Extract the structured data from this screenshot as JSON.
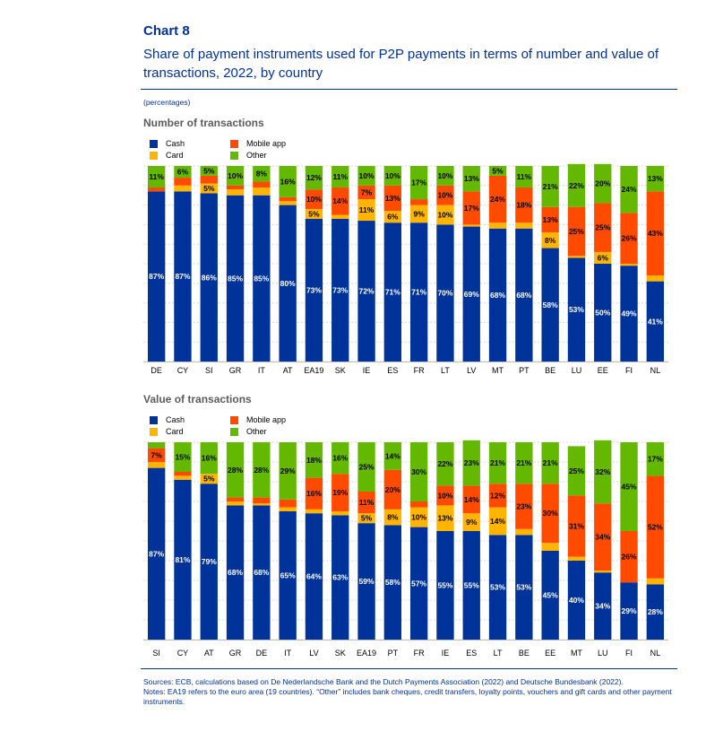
{
  "header": {
    "chart_label": "Chart 8",
    "title": "Share of payment instruments used for P2P payments in terms of number and value of transactions, 2022, by country",
    "unit": "(percentages)"
  },
  "legend": {
    "items": [
      {
        "label": "Cash",
        "color": "#003399"
      },
      {
        "label": "Card",
        "color": "#FFB400"
      },
      {
        "label": "Mobile app",
        "color": "#FF4B00"
      },
      {
        "label": "Other",
        "color": "#65B800"
      }
    ]
  },
  "notes": {
    "sources": "Sources: ECB, calculations based on De Nederlandsche Bank and the Dutch Payments Association (2022) and Deutsche Bundesbank (2022).",
    "notes": "Notes: EA19 refers to the euro area (19 countries). “Other” includes bank cheques, credit transfers, loyalty points, vouchers and gift cards and other payment instruments."
  },
  "chart_data": [
    {
      "type": "bar",
      "stacked": true,
      "title": "Number of transactions",
      "ylim": [
        0,
        100
      ],
      "grid": true,
      "categories": [
        "DE",
        "CY",
        "SI",
        "GR",
        "IT",
        "AT",
        "EA19",
        "SK",
        "IE",
        "ES",
        "FR",
        "LT",
        "LV",
        "MT",
        "PT",
        "BE",
        "LU",
        "EE",
        "FI",
        "NL"
      ],
      "series": [
        {
          "name": "Cash",
          "color": "#003399",
          "values": [
            87,
            87,
            86,
            85,
            85,
            80,
            73,
            73,
            72,
            71,
            71,
            70,
            69,
            68,
            68,
            58,
            53,
            50,
            49,
            41
          ]
        },
        {
          "name": "Card",
          "color": "#FFB400",
          "values": [
            0,
            3,
            5,
            3,
            4,
            2,
            5,
            2,
            11,
            6,
            9,
            10,
            1,
            3,
            3,
            8,
            1,
            6,
            1,
            3
          ]
        },
        {
          "name": "Mobile app",
          "color": "#FF4B00",
          "values": [
            2,
            4,
            4,
            2,
            3,
            2,
            10,
            14,
            7,
            13,
            3,
            10,
            17,
            24,
            18,
            13,
            25,
            25,
            26,
            43
          ]
        },
        {
          "name": "Other",
          "color": "#65B800",
          "values": [
            11,
            6,
            5,
            10,
            8,
            16,
            12,
            11,
            10,
            10,
            17,
            10,
            13,
            5,
            11,
            21,
            22,
            20,
            24,
            13
          ]
        }
      ],
      "labels": {
        "Cash": [
          "87%",
          "87%",
          "86%",
          "85%",
          "85%",
          "80%",
          "73%",
          "73%",
          "72%",
          "71%",
          "71%",
          "70%",
          "69%",
          "68%",
          "68%",
          "58%",
          "53%",
          "50%",
          "49%",
          "41%"
        ],
        "Card": [
          "",
          "",
          "5%",
          "",
          "",
          "",
          "5%",
          "",
          "11%",
          "6%",
          "9%",
          "10%",
          "",
          "",
          "",
          "8%",
          "",
          "6%",
          "",
          ""
        ],
        "Mobile app": [
          "",
          "",
          "",
          "",
          "",
          "",
          "10%",
          "14%",
          "7%",
          "13%",
          "",
          "10%",
          "17%",
          "24%",
          "18%",
          "13%",
          "25%",
          "25%",
          "26%",
          "43%"
        ],
        "Other": [
          "11%",
          "6%",
          "5%",
          "10%",
          "8%",
          "16%",
          "12%",
          "11%",
          "10%",
          "10%",
          "17%",
          "10%",
          "13%",
          "5%",
          "11%",
          "21%",
          "22%",
          "20%",
          "24%",
          "13%"
        ]
      }
    },
    {
      "type": "bar",
      "stacked": true,
      "title": "Value of transactions",
      "ylim": [
        0,
        100
      ],
      "grid": true,
      "categories": [
        "SI",
        "CY",
        "AT",
        "GR",
        "DE",
        "IT",
        "LV",
        "SK",
        "EA19",
        "PT",
        "FR",
        "IE",
        "ES",
        "LT",
        "BE",
        "EE",
        "MT",
        "LU",
        "FI",
        "NL"
      ],
      "series": [
        {
          "name": "Cash",
          "color": "#003399",
          "values": [
            87,
            81,
            79,
            68,
            68,
            65,
            64,
            63,
            59,
            58,
            57,
            55,
            55,
            53,
            53,
            45,
            40,
            34,
            29,
            28
          ]
        },
        {
          "name": "Card",
          "color": "#FFB400",
          "values": [
            3,
            2,
            5,
            2,
            1,
            2,
            2,
            2,
            5,
            8,
            10,
            13,
            9,
            14,
            3,
            4,
            2,
            1,
            0,
            3
          ]
        },
        {
          "name": "Mobile app",
          "color": "#FF4B00",
          "values": [
            7,
            2,
            0,
            2,
            3,
            4,
            16,
            19,
            11,
            20,
            3,
            10,
            14,
            12,
            23,
            30,
            31,
            34,
            26,
            52
          ]
        },
        {
          "name": "Other",
          "color": "#65B800",
          "values": [
            3,
            15,
            16,
            28,
            28,
            29,
            18,
            16,
            25,
            14,
            30,
            22,
            23,
            21,
            21,
            21,
            25,
            32,
            45,
            17
          ]
        }
      ],
      "labels": {
        "Cash": [
          "87%",
          "81%",
          "79%",
          "68%",
          "68%",
          "65%",
          "64%",
          "63%",
          "59%",
          "58%",
          "57%",
          "55%",
          "55%",
          "53%",
          "53%",
          "45%",
          "40%",
          "34%",
          "29%",
          "28%"
        ],
        "Card": [
          "",
          "",
          "5%",
          "",
          "",
          "",
          "",
          "",
          "5%",
          "8%",
          "10%",
          "13%",
          "9%",
          "14%",
          "",
          "",
          "",
          "",
          "",
          ""
        ],
        "Mobile app": [
          "7%",
          "",
          "",
          "",
          "",
          "",
          "16%",
          "19%",
          "11%",
          "20%",
          "",
          "10%",
          "14%",
          "12%",
          "23%",
          "30%",
          "31%",
          "34%",
          "26%",
          "52%"
        ],
        "Other": [
          "",
          "15%",
          "16%",
          "28%",
          "28%",
          "29%",
          "18%",
          "16%",
          "25%",
          "14%",
          "30%",
          "22%",
          "23%",
          "21%",
          "21%",
          "21%",
          "25%",
          "32%",
          "45%",
          "17%"
        ]
      }
    }
  ]
}
